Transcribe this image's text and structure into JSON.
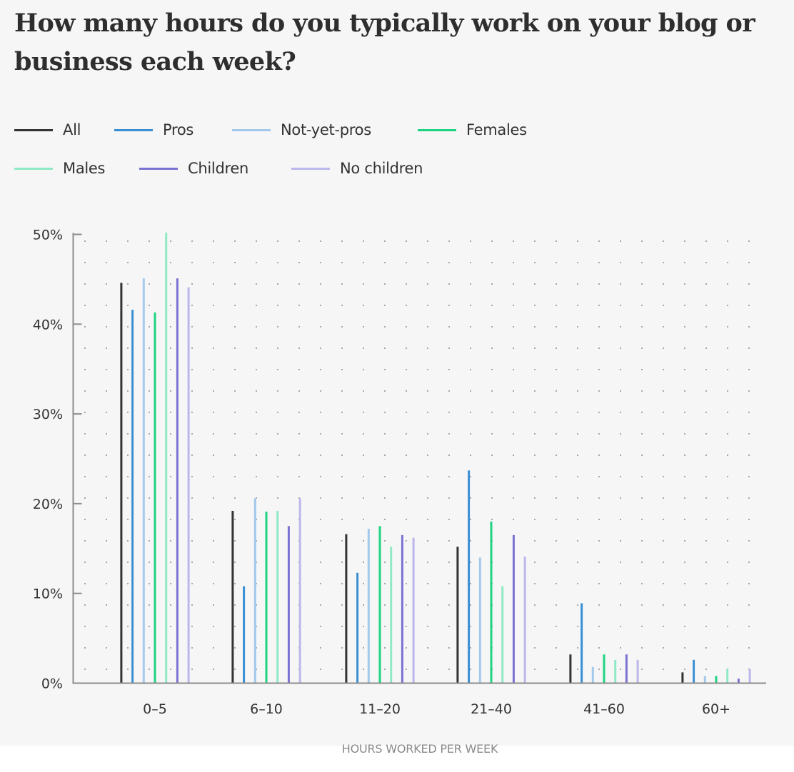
{
  "chart_data": {
    "type": "bar",
    "title": "How many hours do you typically work on your blog or business each week?",
    "xlabel": "HOURS WORKED PER WEEK",
    "ylabel": "",
    "ylim": [
      0,
      50
    ],
    "yticks": [
      "0%",
      "10%",
      "20%",
      "30%",
      "40%",
      "50%"
    ],
    "grid": "dotted",
    "legend_position": "top",
    "categories": [
      "0–5",
      "6–10",
      "11–20",
      "21–40",
      "41–60",
      "60+"
    ],
    "series": [
      {
        "name": "All",
        "color": "#333333",
        "values": [
          44.6,
          19.2,
          16.6,
          15.2,
          3.2,
          1.2
        ]
      },
      {
        "name": "Pros",
        "color": "#3a8fd4",
        "values": [
          41.6,
          10.8,
          12.3,
          23.7,
          8.9,
          2.6
        ]
      },
      {
        "name": "Not-yet-pros",
        "color": "#a2c8ec",
        "values": [
          45.1,
          20.6,
          17.2,
          14.0,
          1.8,
          0.8
        ]
      },
      {
        "name": "Females",
        "color": "#1ed382",
        "values": [
          41.3,
          19.1,
          17.5,
          18.0,
          3.2,
          0.8
        ]
      },
      {
        "name": "Males",
        "color": "#8fe9c4",
        "values": [
          50.2,
          19.2,
          15.2,
          10.8,
          2.6,
          1.6
        ]
      },
      {
        "name": "Children",
        "color": "#7a72d1",
        "values": [
          45.1,
          17.5,
          16.5,
          16.5,
          3.2,
          0.5
        ]
      },
      {
        "name": "No children",
        "color": "#bbb7ea",
        "values": [
          44.1,
          20.6,
          16.2,
          14.1,
          2.6,
          1.6
        ]
      }
    ]
  },
  "header": {
    "title": "How many hours do you typically work on your blog or business each week?"
  },
  "legend": {
    "items": [
      {
        "label": "All",
        "color": "#333333"
      },
      {
        "label": "Pros",
        "color": "#3a8fd4"
      },
      {
        "label": "Not-yet-pros",
        "color": "#a2c8ec"
      },
      {
        "label": "Females",
        "color": "#1ed382"
      },
      {
        "label": "Males",
        "color": "#8fe9c4"
      },
      {
        "label": "Children",
        "color": "#7a72d1"
      },
      {
        "label": "No children",
        "color": "#bbb7ea"
      }
    ]
  },
  "axes": {
    "x_label": "HOURS WORKED PER WEEK"
  }
}
